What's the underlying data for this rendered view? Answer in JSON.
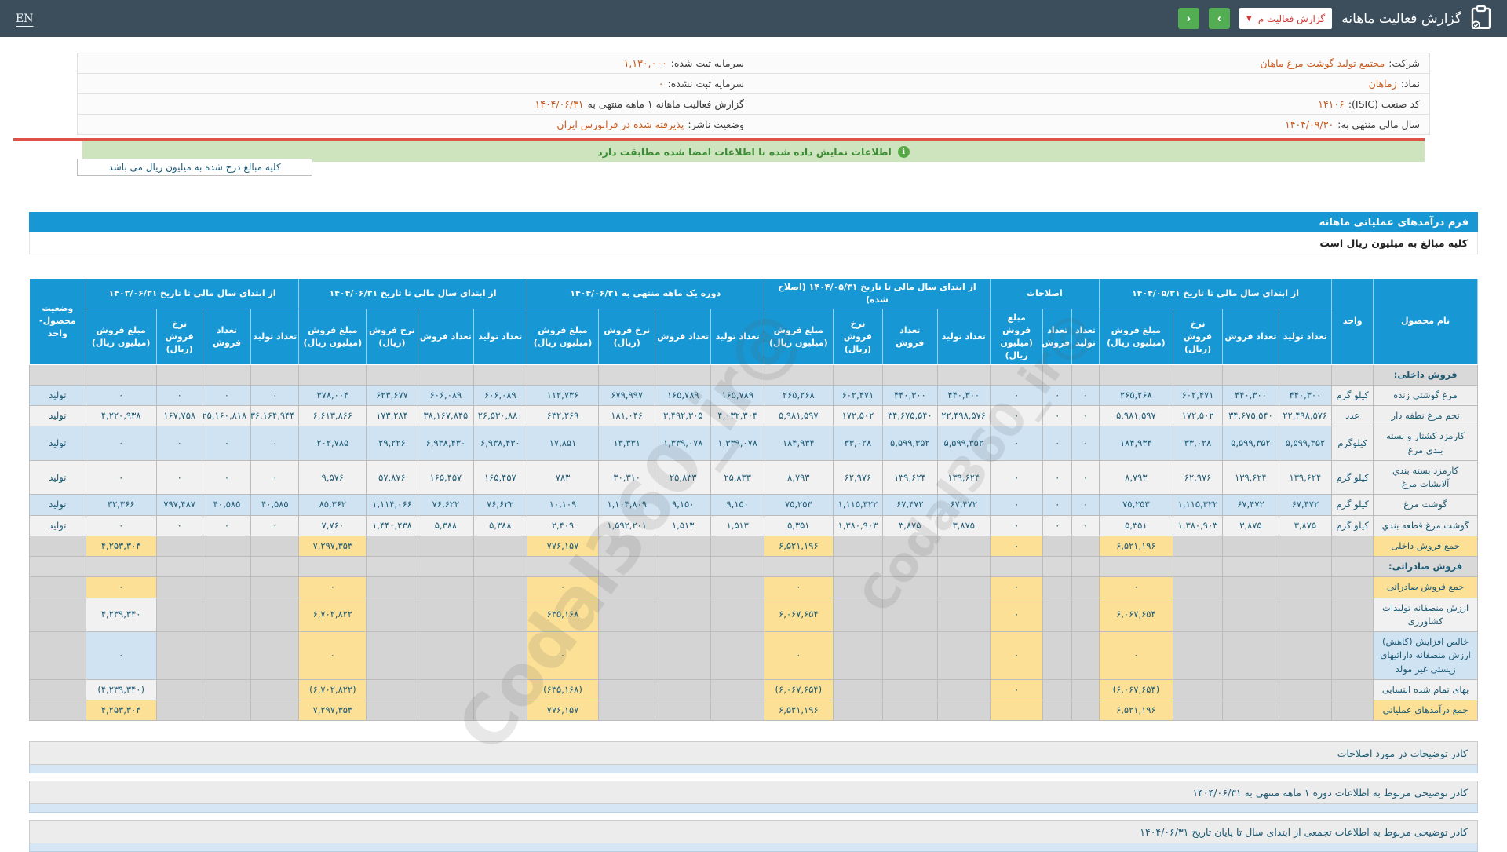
{
  "navbar": {
    "en": "EN",
    "title": "گزارش فعالیت ماهانه",
    "dropdown_label": "گزارش فعالیت م",
    "next_label": "›",
    "prev_label": "‹"
  },
  "company_header": {
    "right": [
      {
        "label": "شرکت:",
        "value": "مجتمع تولید گوشت مرغ ماهان"
      },
      {
        "label": "نماد:",
        "value": "زماهان"
      },
      {
        "label": "کد صنعت (ISIC):",
        "value": "۱۴۱۰۶"
      },
      {
        "label": "سال مالی منتهی به:",
        "value": "۱۴۰۴/۰۹/۳۰"
      }
    ],
    "left": [
      {
        "label": "سرمایه ثبت شده:",
        "value": "۱,۱۳۰,۰۰۰"
      },
      {
        "label": "سرمایه ثبت نشده:",
        "value": "۰"
      },
      {
        "label": "گزارش فعالیت ماهانه ۱ ماهه منتهی به",
        "value": "۱۴۰۴/۰۶/۳۱"
      },
      {
        "label": "وضعیت ناشر:",
        "value": "پذیرفته شده در فرابورس ایران"
      }
    ]
  },
  "notice": "اطلاعات نمایش داده شده با اطلاعات امضا شده مطابقت دارد",
  "amounts_note": "کلیه مبالغ درج شده به میلیون ریال می باشد",
  "form": {
    "title": "فرم درآمدهای عملیاتی ماهانه",
    "subtitle": "کلیه مبالغ به میلیون ریال است"
  },
  "watermark": "@Codal360_ir",
  "table": {
    "header": {
      "product": "نام محصول",
      "unit": "واحد",
      "status": "وضعیت محصول- واحد",
      "sub4": [
        "تعداد تولید",
        "تعداد فروش",
        "نرخ فروش (ریال)",
        "مبلغ فروش (میلیون ریال)"
      ],
      "sub3": [
        "تعداد تولید",
        "تعداد فروش",
        "مبلغ فروش (میلیون ریال)"
      ],
      "groups": [
        {
          "key": "a",
          "label": "از ابتدای سال مالی تا تاریخ ۱۴۰۴/۰۵/۳۱",
          "cols": 4
        },
        {
          "key": "b",
          "label": "اصلاحات",
          "cols": 3
        },
        {
          "key": "c",
          "label": "از ابتدای سال مالی تا تاریخ ۱۴۰۴/۰۵/۳۱ (اصلاح شده)",
          "cols": 4
        },
        {
          "key": "d",
          "label": "دوره یک ماهه منتهی به ۱۴۰۴/۰۶/۳۱",
          "cols": 4
        },
        {
          "key": "e",
          "label": "از ابتدای سال مالی تا تاریخ ۱۴۰۴/۰۶/۳۱",
          "cols": 4
        },
        {
          "key": "f",
          "label": "از ابتدای سال مالی تا تاریخ ۱۴۰۳/۰۶/۳۱",
          "cols": 4
        }
      ]
    },
    "rows": [
      {
        "type": "section",
        "label": "فروش داخلی:"
      },
      {
        "type": "product",
        "shade": "bl",
        "name": "مرغ گوشتي زنده",
        "unit": "کیلو گرم",
        "status": "تولید",
        "a": [
          "۴۴۰,۳۰۰",
          "۴۴۰,۳۰۰",
          "۶۰۲,۴۷۱",
          "۲۶۵,۲۶۸"
        ],
        "b": [
          "۰",
          "۰",
          "۰"
        ],
        "c": [
          "۴۴۰,۳۰۰",
          "۴۴۰,۳۰۰",
          "۶۰۲,۴۷۱",
          "۲۶۵,۲۶۸"
        ],
        "d": [
          "۱۶۵,۷۸۹",
          "۱۶۵,۷۸۹",
          "۶۷۹,۹۹۷",
          "۱۱۲,۷۳۶"
        ],
        "e": [
          "۶۰۶,۰۸۹",
          "۶۰۶,۰۸۹",
          "۶۲۳,۶۷۷",
          "۳۷۸,۰۰۴"
        ],
        "f": [
          "۰",
          "۰",
          "۰",
          "۰"
        ]
      },
      {
        "type": "product",
        "shade": "lt",
        "name": "تخم مرغ نطفه دار",
        "unit": "عدد",
        "status": "تولید",
        "a": [
          "۲۲,۴۹۸,۵۷۶",
          "۳۴,۶۷۵,۵۴۰",
          "۱۷۲,۵۰۲",
          "۵,۹۸۱,۵۹۷"
        ],
        "b": [
          "۰",
          "۰",
          "۰"
        ],
        "c": [
          "۲۲,۴۹۸,۵۷۶",
          "۳۴,۶۷۵,۵۴۰",
          "۱۷۲,۵۰۲",
          "۵,۹۸۱,۵۹۷"
        ],
        "d": [
          "۴,۰۳۲,۳۰۴",
          "۳,۴۹۲,۳۰۵",
          "۱۸۱,۰۴۶",
          "۶۳۲,۲۶۹"
        ],
        "e": [
          "۲۶,۵۳۰,۸۸۰",
          "۳۸,۱۶۷,۸۴۵",
          "۱۷۳,۲۸۴",
          "۶,۶۱۳,۸۶۶"
        ],
        "f": [
          "۳۶,۱۶۴,۹۴۴",
          "۲۵,۱۶۰,۸۱۸",
          "۱۶۷,۷۵۸",
          "۴,۲۲۰,۹۳۸"
        ]
      },
      {
        "type": "product",
        "shade": "bl",
        "name": "کارمزد کشتار و بسته بندي مرغ",
        "unit": "کیلوگرم",
        "status": "تولید",
        "a": [
          "۵,۵۹۹,۳۵۲",
          "۵,۵۹۹,۳۵۲",
          "۳۳,۰۲۸",
          "۱۸۴,۹۳۴"
        ],
        "b": [
          "۰",
          "۰",
          "۰"
        ],
        "c": [
          "۵,۵۹۹,۳۵۲",
          "۵,۵۹۹,۳۵۲",
          "۳۳,۰۲۸",
          "۱۸۴,۹۳۴"
        ],
        "d": [
          "۱,۳۳۹,۰۷۸",
          "۱,۳۳۹,۰۷۸",
          "۱۳,۳۳۱",
          "۱۷,۸۵۱"
        ],
        "e": [
          "۶,۹۳۸,۴۳۰",
          "۶,۹۳۸,۴۳۰",
          "۲۹,۲۲۶",
          "۲۰۲,۷۸۵"
        ],
        "f": [
          "۰",
          "۰",
          "۰",
          "۰"
        ]
      },
      {
        "type": "product",
        "shade": "lt",
        "name": "کارمزد بسته بندي آلایشات مرغ",
        "unit": "کیلو گرم",
        "status": "تولید",
        "a": [
          "۱۳۹,۶۲۴",
          "۱۳۹,۶۲۴",
          "۶۲,۹۷۶",
          "۸,۷۹۳"
        ],
        "b": [
          "۰",
          "۰",
          "۰"
        ],
        "c": [
          "۱۳۹,۶۲۴",
          "۱۳۹,۶۲۴",
          "۶۲,۹۷۶",
          "۸,۷۹۳"
        ],
        "d": [
          "۲۵,۸۳۳",
          "۲۵,۸۳۳",
          "۳۰,۳۱۰",
          "۷۸۳"
        ],
        "e": [
          "۱۶۵,۴۵۷",
          "۱۶۵,۴۵۷",
          "۵۷,۸۷۶",
          "۹,۵۷۶"
        ],
        "f": [
          "۰",
          "۰",
          "۰",
          "۰"
        ]
      },
      {
        "type": "product",
        "shade": "bl",
        "name": "گوشت مرغ",
        "unit": "کیلو گرم",
        "status": "تولید",
        "a": [
          "۶۷,۴۷۲",
          "۶۷,۴۷۲",
          "۱,۱۱۵,۳۲۲",
          "۷۵,۲۵۳"
        ],
        "b": [
          "۰",
          "۰",
          "۰"
        ],
        "c": [
          "۶۷,۴۷۲",
          "۶۷,۴۷۲",
          "۱,۱۱۵,۳۲۲",
          "۷۵,۲۵۳"
        ],
        "d": [
          "۹,۱۵۰",
          "۹,۱۵۰",
          "۱,۱۰۴,۸۰۹",
          "۱۰,۱۰۹"
        ],
        "e": [
          "۷۶,۶۲۲",
          "۷۶,۶۲۲",
          "۱,۱۱۴,۰۶۶",
          "۸۵,۳۶۲"
        ],
        "f": [
          "۴۰,۵۸۵",
          "۴۰,۵۸۵",
          "۷۹۷,۴۸۷",
          "۳۲,۳۶۶"
        ]
      },
      {
        "type": "product",
        "shade": "lt",
        "name": "گوشت مرغ قطعه بندي",
        "unit": "کیلو گرم",
        "status": "تولید",
        "a": [
          "۳,۸۷۵",
          "۳,۸۷۵",
          "۱,۳۸۰,۹۰۳",
          "۵,۳۵۱"
        ],
        "b": [
          "۰",
          "۰",
          "۰"
        ],
        "c": [
          "۳,۸۷۵",
          "۳,۸۷۵",
          "۱,۳۸۰,۹۰۳",
          "۵,۳۵۱"
        ],
        "d": [
          "۱,۵۱۳",
          "۱,۵۱۳",
          "۱,۵۹۲,۲۰۱",
          "۲,۴۰۹"
        ],
        "e": [
          "۵,۳۸۸",
          "۵,۳۸۸",
          "۱,۴۴۰,۲۳۸",
          "۷,۷۶۰"
        ],
        "f": [
          "۰",
          "۰",
          "۰",
          "۰"
        ]
      },
      {
        "type": "summary",
        "label": "جمع فروش داخلی",
        "label_bg": "y",
        "f_bg": "y",
        "amounts": {
          "a": "۶,۵۲۱,۱۹۶",
          "b": "۰",
          "c": "۶,۵۲۱,۱۹۶",
          "d": "۷۷۶,۱۵۷",
          "e": "۷,۲۹۷,۳۵۳",
          "f": "۴,۲۵۳,۳۰۴"
        }
      },
      {
        "type": "section",
        "label": "فروش صادراتی:"
      },
      {
        "type": "summary",
        "label": "جمع فروش صادراتی",
        "label_bg": "y",
        "f_bg": "y",
        "amounts": {
          "a": "۰",
          "b": "۰",
          "c": "۰",
          "d": "۰",
          "e": "۰",
          "f": "۰"
        }
      },
      {
        "type": "summary",
        "label": "ارزش منصفانه تولیدات کشاورزی",
        "label_bg": "lt",
        "f_bg": "lt",
        "amounts": {
          "a": "۶,۰۶۷,۶۵۴",
          "b": "۰",
          "c": "۶,۰۶۷,۶۵۴",
          "d": "۶۳۵,۱۶۸",
          "e": "۶,۷۰۲,۸۲۲",
          "f": "۴,۲۳۹,۳۴۰"
        }
      },
      {
        "type": "summary",
        "label": "خالص افزایش (کاهش) ارزش منصفانه دارائیهای زیستی غیر مولد",
        "label_bg": "bl",
        "f_bg": "bl",
        "amounts": {
          "a": "۰",
          "b": "۰",
          "c": "۰",
          "d": "۰",
          "e": "۰",
          "f": "۰"
        }
      },
      {
        "type": "summary",
        "label": "بهای تمام شده انتسابی",
        "label_bg": "lt",
        "f_bg": "lt",
        "amounts": {
          "a": "(۶,۰۶۷,۶۵۴)",
          "b": "۰",
          "c": "(۶,۰۶۷,۶۵۴)",
          "d": "(۶۳۵,۱۶۸)",
          "e": "(۶,۷۰۲,۸۲۲)",
          "f": "(۴,۲۳۹,۳۴۰)"
        }
      },
      {
        "type": "summary",
        "label": "جمع درآمدهای عملیاتی",
        "label_bg": "y",
        "f_bg": "y",
        "amounts": {
          "a": "۶,۵۲۱,۱۹۶",
          "b": "",
          "c": "۶,۵۲۱,۱۹۶",
          "d": "۷۷۶,۱۵۷",
          "e": "۷,۲۹۷,۳۵۳",
          "f": "۴,۲۵۳,۳۰۴"
        }
      }
    ]
  },
  "notes": [
    "کادر توضیحات در مورد اصلاحات",
    "کادر توضیحی مربوط به اطلاعات دوره ۱ ماهه منتهی به ۱۴۰۴/۰۶/۳۱",
    "کادر توضیحی مربوط به اطلاعات تجمعی از ابتدای سال تا پایان تاریخ ۱۴۰۴/۰۶/۳۱"
  ]
}
